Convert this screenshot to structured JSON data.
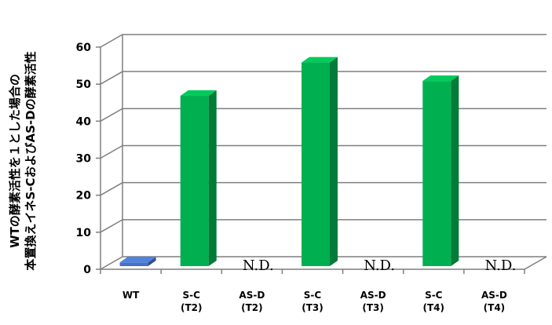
{
  "chart_data": {
    "type": "bar",
    "categories": [
      [
        "WT"
      ],
      [
        "S-C",
        "(T2)"
      ],
      [
        "AS-D",
        "(T2)"
      ],
      [
        "S-C",
        "(T3)"
      ],
      [
        "AS-D",
        "(T3)"
      ],
      [
        "S-C",
        "(T4)"
      ],
      [
        "AS-D",
        "(T4)"
      ]
    ],
    "values": [
      1,
      46,
      null,
      55,
      null,
      50,
      null
    ],
    "annotations": [
      "",
      "",
      "N.D.",
      "",
      "N.D.",
      "",
      "N.D."
    ],
    "bar_colors": [
      "#4472C4",
      "#00B050",
      "#00B050",
      "#00B050",
      "#00B050",
      "#00B050",
      "#00B050"
    ],
    "ylabel_lines": [
      "WTの酵素活性を１とした場合の",
      "本置換えイネS-CおよびAS-Dの酵素活性"
    ],
    "ylim": [
      0,
      60
    ],
    "yticks": [
      0,
      10,
      20,
      30,
      40,
      50,
      60
    ],
    "grid": true,
    "projection": "3d"
  }
}
